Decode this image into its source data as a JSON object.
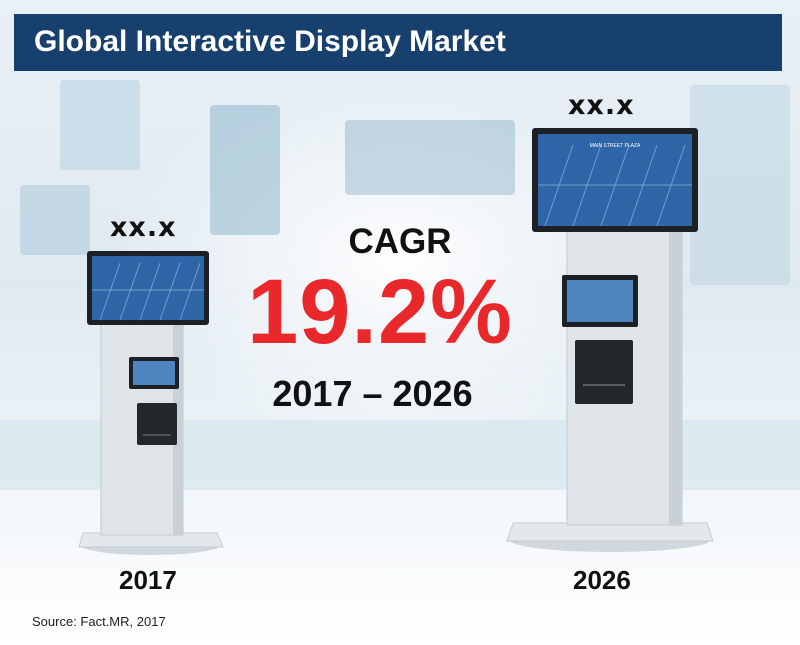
{
  "title": "Global Interactive Display Market",
  "chart_data": {
    "type": "bar",
    "title": "Global Interactive Display Market",
    "categories": [
      "2017",
      "2026"
    ],
    "value_labels": [
      "xx.x",
      "xx.x"
    ],
    "cagr": {
      "label": "CAGR",
      "value": "19.2%",
      "period": "2017 – 2026"
    }
  },
  "kiosk_screen_text": "MAIN STREET PLAZA",
  "source": "Source: Fact.MR, 2017",
  "colors": {
    "title_bar": "#17406e",
    "cagr_value": "#e8282b",
    "text": "#111111"
  }
}
